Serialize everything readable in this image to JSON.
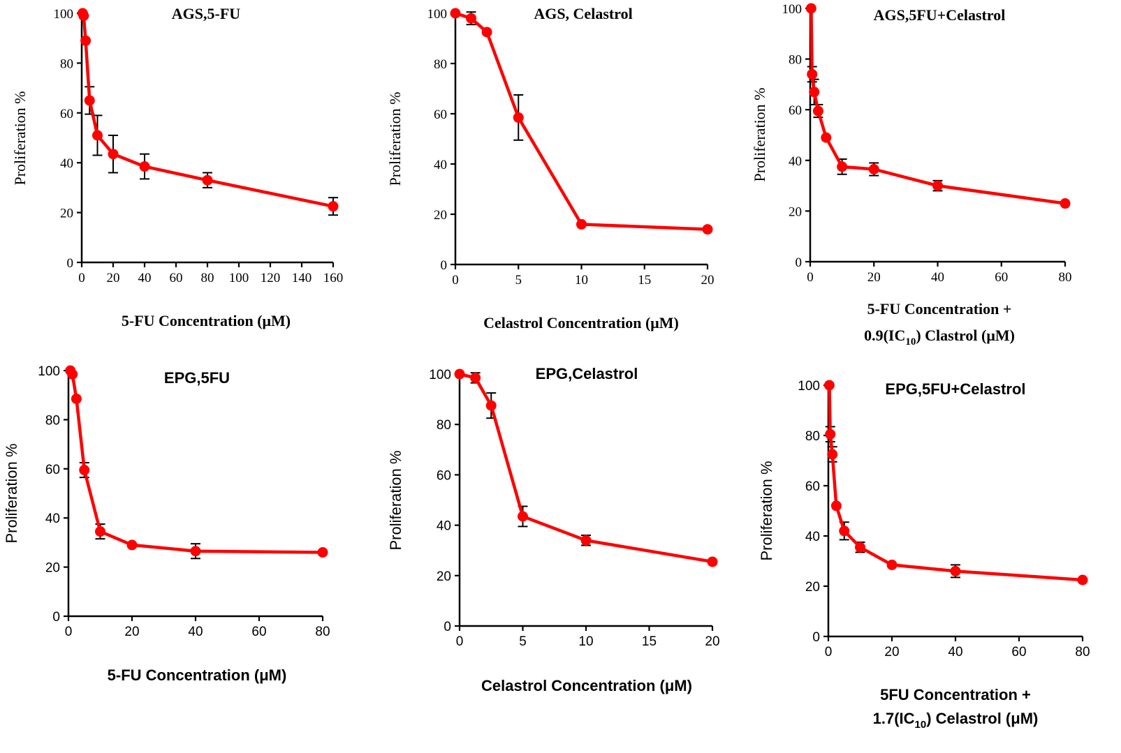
{
  "colors": {
    "series": "#ff0000",
    "errorbar": "#000000"
  },
  "chart_data": [
    {
      "type": "line",
      "title": "AGS,5-FU",
      "ylabel": "Proliferation %",
      "xlabel_lines": [
        "5-FU Concentration (μM)"
      ],
      "xlim": [
        0,
        160
      ],
      "ylim": [
        0,
        100
      ],
      "xticks": [
        0,
        20,
        40,
        60,
        80,
        100,
        120,
        140,
        160
      ],
      "yticks": [
        0,
        20,
        40,
        60,
        80,
        100
      ],
      "x": [
        0.6,
        1.25,
        2.5,
        5,
        10,
        20,
        40,
        80,
        160
      ],
      "y": [
        100,
        99,
        89,
        65,
        51,
        43.5,
        38.5,
        33,
        22.5
      ],
      "err": [
        0,
        0,
        0,
        5.5,
        8,
        7.5,
        5,
        3,
        3.5
      ]
    },
    {
      "type": "line",
      "title": "AGS, Celastrol",
      "ylabel": "Proliferation %",
      "xlabel_lines": [
        "Celastrol Concentration (μM)"
      ],
      "xlim": [
        0,
        20
      ],
      "ylim": [
        0,
        100
      ],
      "xticks": [
        0,
        5,
        10,
        15,
        20
      ],
      "yticks": [
        0,
        20,
        40,
        60,
        80,
        100
      ],
      "x": [
        0,
        1.25,
        2.5,
        5,
        10,
        20
      ],
      "y": [
        100,
        98,
        92.5,
        58.5,
        16,
        14
      ],
      "err": [
        0,
        2.5,
        0,
        9,
        0,
        0
      ]
    },
    {
      "type": "line",
      "title": "AGS,5FU+Celastrol",
      "ylabel": "Proliferation %",
      "xlabel_lines": [
        "5-FU Concentration +",
        "0.9(IC<sub>10</sub>) Clastrol (μM)"
      ],
      "xlim": [
        0,
        80
      ],
      "ylim": [
        0,
        100
      ],
      "xticks": [
        0,
        20,
        40,
        60,
        80
      ],
      "yticks": [
        0,
        20,
        40,
        60,
        80,
        100
      ],
      "x": [
        0.3,
        0.6,
        1.25,
        2.5,
        5,
        10,
        20,
        40,
        80
      ],
      "y": [
        100,
        74,
        67,
        59.5,
        49,
        37.5,
        36.5,
        30,
        23
      ],
      "err": [
        0,
        3,
        5,
        2.5,
        0,
        3,
        2.5,
        2,
        0
      ]
    },
    {
      "type": "line",
      "title": "EPG,5FU",
      "ylabel": "Proliferation %",
      "xlabel_lines": [
        "5-FU Concentration (μM)"
      ],
      "xlim": [
        0,
        80
      ],
      "ylim": [
        0,
        100
      ],
      "xticks": [
        0,
        20,
        40,
        60,
        80
      ],
      "yticks": [
        0,
        20,
        40,
        60,
        80,
        100
      ],
      "x": [
        0.6,
        1.25,
        2.5,
        5,
        10,
        20,
        40,
        80
      ],
      "y": [
        100,
        98.5,
        88.5,
        59.5,
        34.5,
        29,
        26.5,
        26
      ],
      "err": [
        0,
        0,
        0,
        3,
        3,
        0,
        3,
        0
      ]
    },
    {
      "type": "line",
      "title": "EPG,Celastrol",
      "ylabel": "Proliferation %",
      "xlabel_lines": [
        "Celastrol Concentration (μM)"
      ],
      "xlim": [
        0,
        20
      ],
      "ylim": [
        0,
        100
      ],
      "xticks": [
        0,
        5,
        10,
        15,
        20
      ],
      "yticks": [
        0,
        20,
        40,
        60,
        80,
        100
      ],
      "x": [
        0,
        1.25,
        2.5,
        5,
        10,
        20
      ],
      "y": [
        100,
        98.5,
        87.5,
        43.5,
        34,
        25.5
      ],
      "err": [
        0,
        2,
        5,
        4,
        2,
        0
      ]
    },
    {
      "type": "line",
      "title": "EPG,5FU+Celastrol",
      "ylabel": "Proliferation %",
      "xlabel_lines": [
        "5FU Concentration +",
        "1.7(IC<sub>10</sub>) Celastrol (μM)"
      ],
      "xlim": [
        0,
        80
      ],
      "ylim": [
        0,
        100
      ],
      "xticks": [
        0,
        20,
        40,
        60,
        80
      ],
      "yticks": [
        0,
        20,
        40,
        60,
        80,
        100
      ],
      "x": [
        0.3,
        0.6,
        1.25,
        2.5,
        5,
        10,
        20,
        40,
        80
      ],
      "y": [
        100,
        80.5,
        72.5,
        52,
        42,
        35.5,
        28.5,
        26,
        22.5
      ],
      "err": [
        0,
        3,
        3,
        0,
        3.5,
        2,
        0,
        2.5,
        0
      ]
    }
  ]
}
